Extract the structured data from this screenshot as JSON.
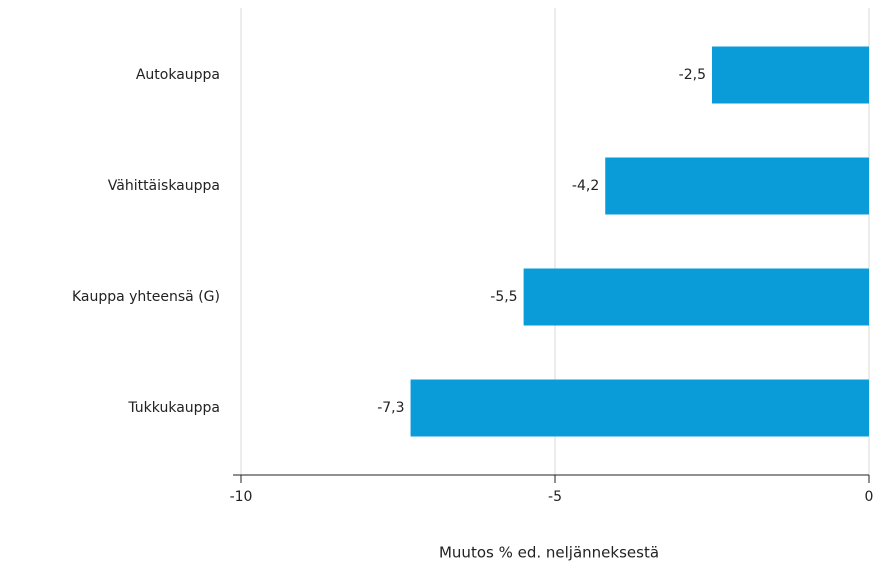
{
  "chart_data": {
    "type": "hbar",
    "categories": [
      "Autokauppa",
      "Vähittäiskauppa",
      "Kauppa yhteensä (G)",
      "Tukkukauppa"
    ],
    "values": [
      -2.5,
      -4.2,
      -5.5,
      -7.3
    ],
    "value_labels": [
      "-2,5",
      "-4,2",
      "-5,5",
      "-7,3"
    ],
    "color": "#0a9bd9",
    "xlim": [
      -10,
      0
    ],
    "xticks": [
      -10,
      -5,
      0
    ],
    "grid": true,
    "x_label": "Muutos % ed. neljänneksestä"
  }
}
